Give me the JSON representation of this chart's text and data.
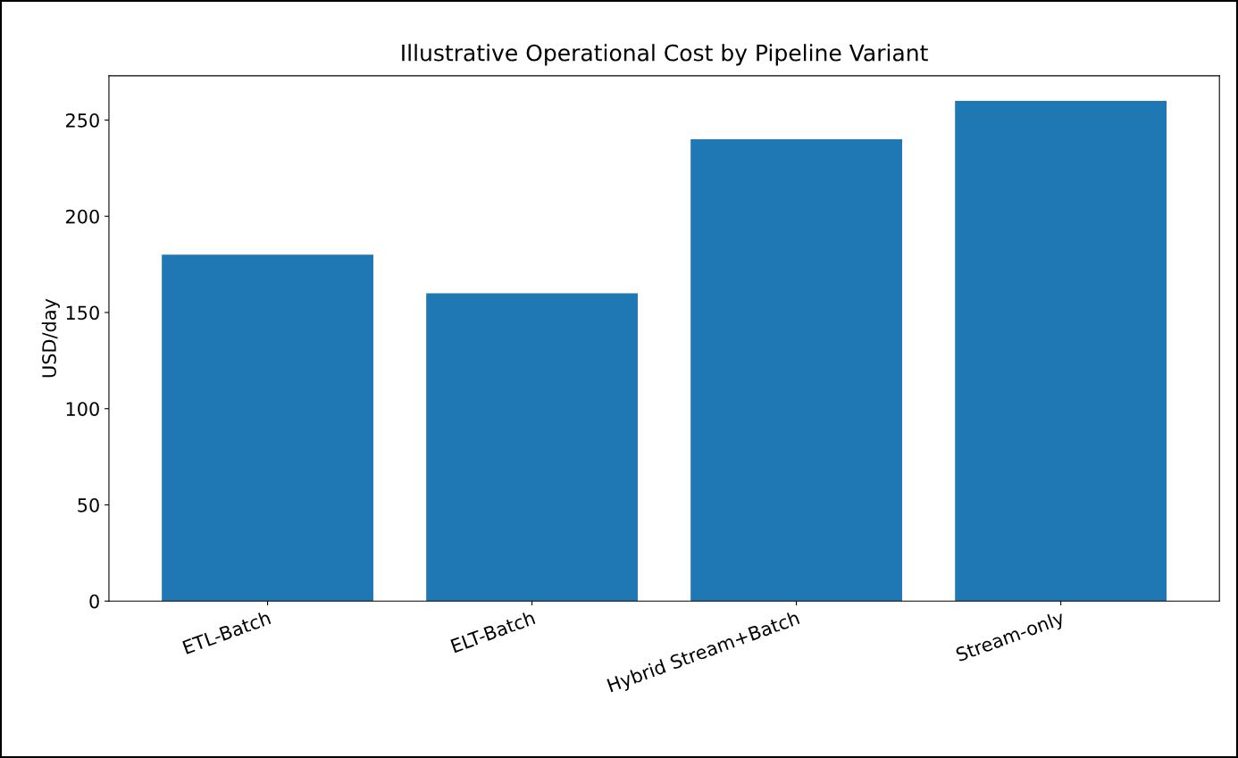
{
  "chart_data": {
    "type": "bar",
    "title": "Illustrative Operational Cost by Pipeline Variant",
    "ylabel": "USD/day",
    "categories": [
      "ETL-Batch",
      "ELT-Batch",
      "Hybrid Stream+Batch",
      "Stream-only"
    ],
    "values": [
      180,
      160,
      240,
      260
    ],
    "color": "#1f77b4",
    "ylim": [
      0,
      273
    ],
    "yticks": [
      0,
      50,
      100,
      150,
      200,
      250
    ]
  }
}
